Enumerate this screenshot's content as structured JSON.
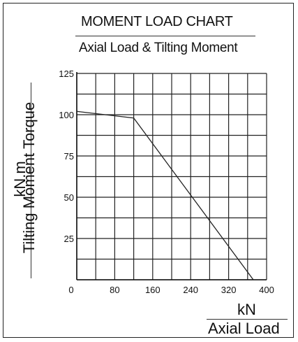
{
  "chart_data": {
    "type": "line",
    "title": "MOMENT LOAD CHART",
    "subtitle": "Axial Load & Tilting Moment",
    "ylabel_unit": "kN.m",
    "ylabel": "Tilting Moment Torque",
    "xlabel_unit": "kN",
    "xlabel": "Axial Load",
    "xlim": [
      0,
      400
    ],
    "ylim": [
      0,
      125
    ],
    "x_ticks": [
      0,
      80,
      160,
      240,
      320,
      400
    ],
    "x_tick_labels": [
      "0",
      "80",
      "160",
      "240",
      "320",
      "400"
    ],
    "y_ticks": [
      25,
      50,
      75,
      100,
      125
    ],
    "y_tick_labels": [
      "25",
      "50",
      "75",
      "100",
      "125"
    ],
    "grid": true,
    "x_grid_step": 40,
    "y_grid_step": 12.5,
    "line_color": "#222222",
    "grid_color": "#222222",
    "series": [
      {
        "x": [
          0,
          120,
          372
        ],
        "y": [
          102,
          98,
          0
        ]
      }
    ]
  }
}
